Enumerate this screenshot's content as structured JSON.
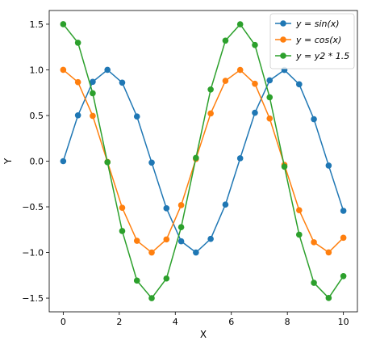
{
  "chart_data": {
    "type": "line",
    "title": "",
    "xlabel": "X",
    "ylabel": "Y",
    "xlim": [
      -0.5,
      10.5
    ],
    "ylim": [
      -1.65,
      1.65
    ],
    "xticks": [
      0,
      2,
      4,
      6,
      8,
      10
    ],
    "yticks": [
      -1.5,
      -1.0,
      -0.5,
      0.0,
      0.5,
      1.0,
      1.5
    ],
    "xtick_labels": [
      "0",
      "2",
      "4",
      "6",
      "8",
      "10"
    ],
    "ytick_labels": [
      "−1.5",
      "−1.0",
      "−0.5",
      "0.0",
      "0.5",
      "1.0",
      "1.5"
    ],
    "grid": false,
    "legend_position": "top-right",
    "x": [
      0.0,
      0.5263,
      1.0526,
      1.5789,
      2.1053,
      2.6316,
      3.1579,
      3.6842,
      4.2105,
      4.7368,
      5.2632,
      5.7895,
      6.3158,
      6.8421,
      7.3684,
      7.8947,
      8.4211,
      8.9474,
      9.4737,
      10.0
    ],
    "series": [
      {
        "name": "y = sin(x)",
        "color": "#1f77b4",
        "values": [
          0.0,
          0.502,
          0.869,
          1.0,
          0.86,
          0.489,
          -0.016,
          -0.516,
          -0.877,
          -1.0,
          -0.851,
          -0.475,
          0.032,
          0.53,
          0.885,
          0.999,
          0.842,
          0.46,
          -0.048,
          -0.544
        ]
      },
      {
        "name": "y = cos(x)",
        "color": "#ff7f0e",
        "values": [
          1.0,
          0.865,
          0.496,
          -0.008,
          -0.51,
          -0.872,
          -1.0,
          -0.857,
          -0.482,
          0.024,
          0.523,
          0.88,
          0.999,
          0.848,
          0.467,
          -0.04,
          -0.537,
          -0.888,
          -0.999,
          -0.839
        ]
      },
      {
        "name": "y = y2 * 1.5",
        "color": "#2ca02c",
        "values": [
          1.5,
          1.297,
          0.744,
          -0.012,
          -0.765,
          -1.308,
          -1.5,
          -1.285,
          -0.723,
          0.036,
          0.785,
          1.32,
          1.499,
          1.272,
          0.7,
          -0.06,
          -0.805,
          -1.332,
          -1.498,
          -1.259
        ]
      }
    ]
  },
  "legend": {
    "entries": [
      {
        "prefix": "y",
        "eq": " = ",
        "fn": "sin(x)"
      },
      {
        "prefix": "y",
        "eq": " = ",
        "fn": "cos(x)"
      },
      {
        "prefix": "y",
        "eq": " = ",
        "fn": "y2 * 1.5"
      }
    ]
  }
}
